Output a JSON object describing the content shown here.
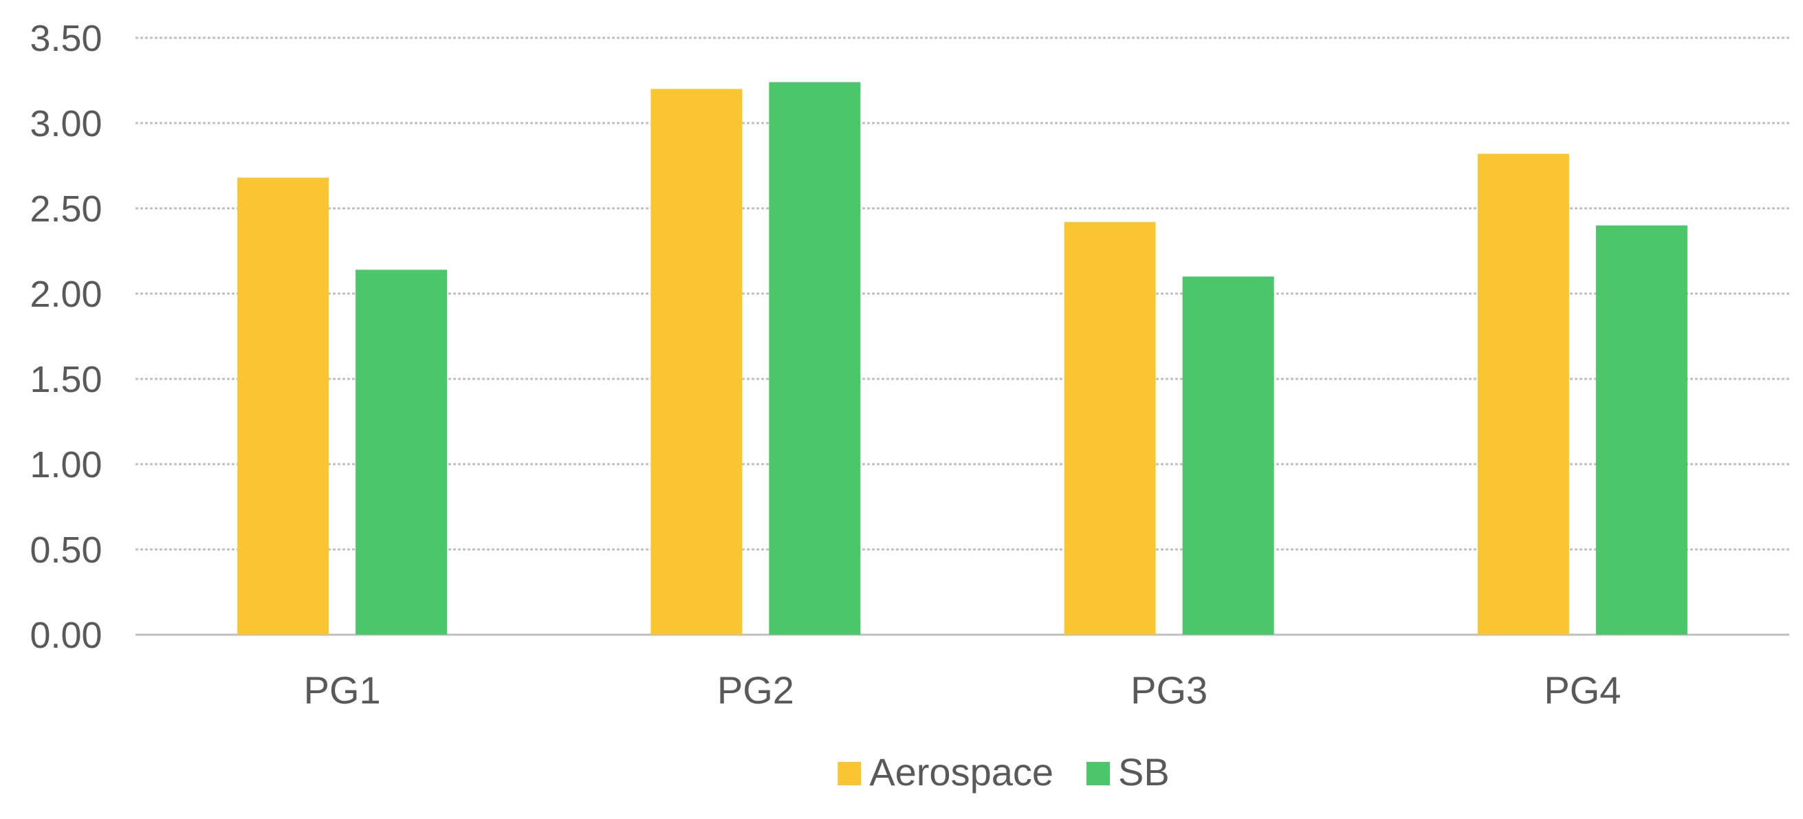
{
  "chart_data": {
    "type": "bar",
    "title": "",
    "xlabel": "",
    "ylabel": "",
    "categories": [
      "PG1",
      "PG2",
      "PG3",
      "PG4"
    ],
    "series": [
      {
        "name": "Aerospace",
        "color": "#F9C631",
        "values": [
          2.68,
          3.2,
          2.42,
          2.82
        ]
      },
      {
        "name": "SB",
        "color": "#4BC66A",
        "values": [
          2.14,
          3.24,
          2.1,
          2.4
        ]
      }
    ],
    "ylim": [
      0,
      3.5
    ],
    "yticks": [
      "0.00",
      "0.50",
      "1.00",
      "1.50",
      "2.00",
      "2.50",
      "3.00",
      "3.50"
    ],
    "grid": true,
    "grid_color": "#BFBFBF",
    "text_color": "#595959",
    "legend_position": "bottom-center"
  }
}
